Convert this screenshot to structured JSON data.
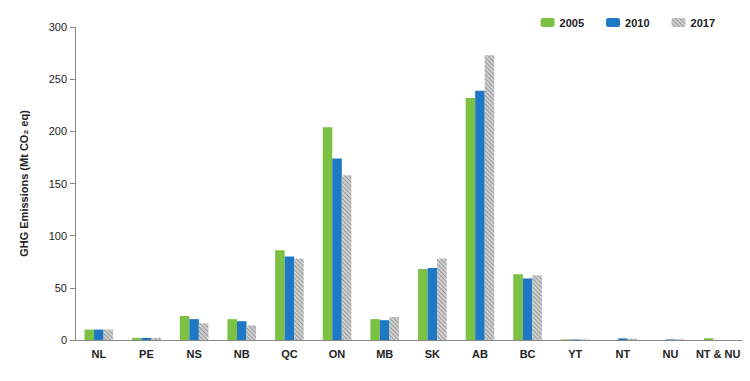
{
  "chart_data": {
    "type": "bar",
    "y_label": "GHG Emissions (Mt CO₂ eq)",
    "categories": [
      "NL",
      "PE",
      "NS",
      "NB",
      "QC",
      "ON",
      "MB",
      "SK",
      "AB",
      "BC",
      "YT",
      "NT",
      "NU",
      "NT & NU"
    ],
    "series": [
      {
        "name": "2005",
        "color": "#7cc143",
        "values": [
          10,
          2,
          23,
          20,
          86,
          204,
          20,
          68,
          232,
          63,
          0.6,
          null,
          null,
          1.7
        ]
      },
      {
        "name": "2010",
        "color": "#1f78c4",
        "values": [
          10,
          2,
          20,
          18,
          80,
          174,
          19,
          69,
          239,
          59,
          0.5,
          1.5,
          0.6,
          null
        ]
      },
      {
        "name": "2017",
        "color": "#cfcfcf",
        "values": [
          10,
          2,
          16,
          14,
          78,
          158,
          22,
          78,
          273,
          62,
          0.5,
          1.3,
          0.6,
          null
        ]
      }
    ],
    "ylim": [
      0,
      300
    ],
    "yticks": [
      0,
      50,
      100,
      150,
      200,
      250,
      300
    ],
    "grid": false,
    "legend": "upper right"
  }
}
